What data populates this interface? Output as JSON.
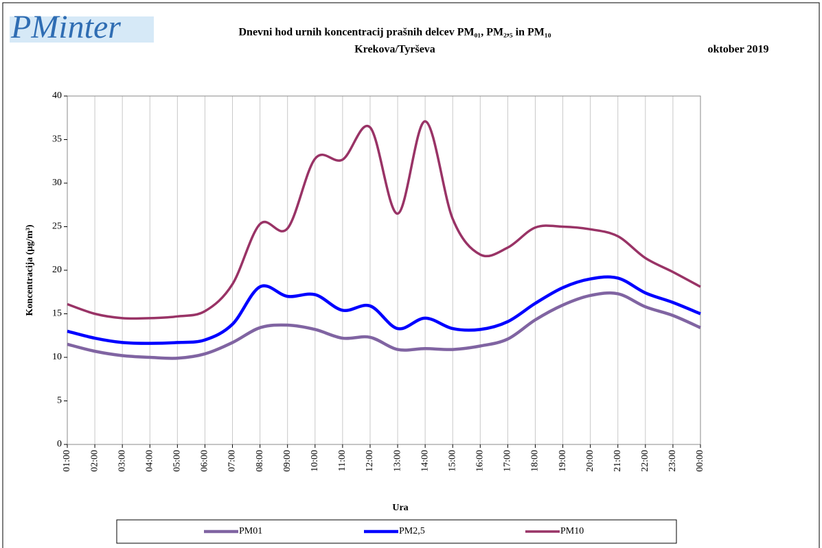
{
  "logo": "PMinter",
  "chart_data": {
    "type": "line",
    "title": "Dnevni hod urnih koncentracij prašnih delcev PM₀₁, PM₂,₅ in PM₁₀",
    "subtitle": "Krekova/Tyrševa",
    "date_label": "oktober 2019",
    "x_label": "Ura",
    "y_label": "Koncentracija (µg/m³)",
    "categories": [
      "01:00",
      "02:00",
      "03:00",
      "04:00",
      "05:00",
      "06:00",
      "07:00",
      "08:00",
      "09:00",
      "10:00",
      "11:00",
      "12:00",
      "13:00",
      "14:00",
      "15:00",
      "16:00",
      "17:00",
      "18:00",
      "19:00",
      "20:00",
      "21:00",
      "22:00",
      "23:00",
      "00:00"
    ],
    "series": [
      {
        "name": "PM01",
        "color": "#8064a2",
        "values": [
          11.5,
          10.7,
          10.2,
          10.0,
          9.9,
          10.4,
          11.7,
          13.4,
          13.7,
          13.2,
          12.2,
          12.3,
          10.9,
          11.0,
          10.9,
          11.3,
          12.1,
          14.3,
          16.0,
          17.1,
          17.3,
          15.8,
          14.8,
          13.4
        ]
      },
      {
        "name": "PM2,5",
        "color": "#0000ff",
        "values": [
          13.0,
          12.2,
          11.7,
          11.6,
          11.7,
          12.0,
          13.8,
          18.1,
          17.0,
          17.2,
          15.4,
          15.9,
          13.3,
          14.5,
          13.3,
          13.2,
          14.1,
          16.2,
          18.0,
          19.0,
          19.1,
          17.4,
          16.3,
          15.0
        ]
      },
      {
        "name": "PM10",
        "color": "#993366",
        "values": [
          16.1,
          15.0,
          14.5,
          14.5,
          14.7,
          15.3,
          18.4,
          25.3,
          24.8,
          32.8,
          32.7,
          36.4,
          26.5,
          37.1,
          25.9,
          21.8,
          22.6,
          24.9,
          25.0,
          24.7,
          23.9,
          21.4,
          19.8,
          18.1
        ]
      }
    ],
    "ylim": [
      0,
      40
    ],
    "yticks": [
      0,
      5,
      10,
      15,
      20,
      25,
      30,
      35,
      40
    ],
    "grid": "x"
  }
}
